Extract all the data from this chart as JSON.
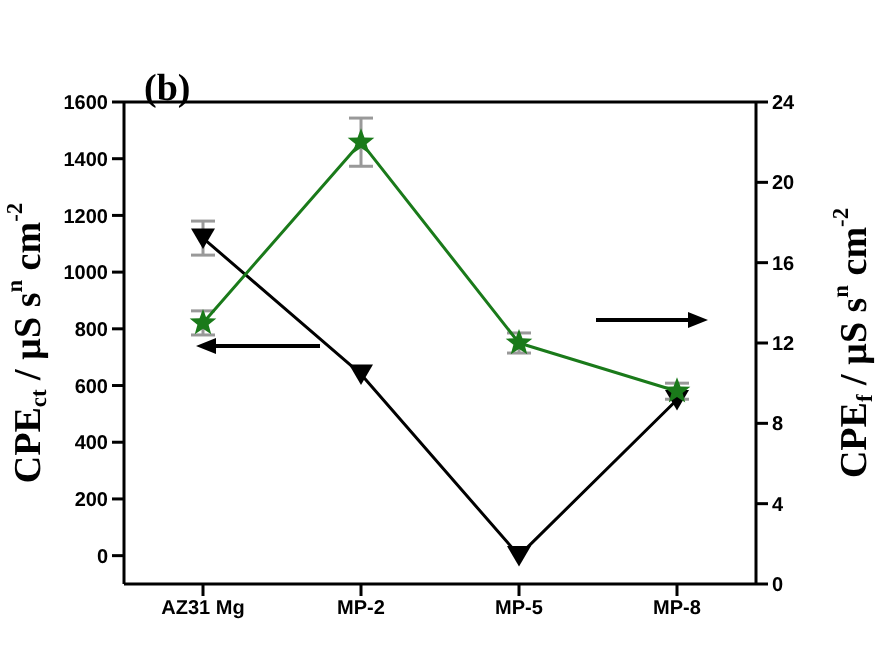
{
  "chart_data": {
    "type": "line",
    "categories": [
      "AZ31 Mg",
      "MP-2",
      "MP-5",
      "MP-8"
    ],
    "ylabel": "CPE$_{ct}$ / µS s$^{n}$ cm$^{-2}$",
    "y2label": "CPE$_{f}$ / µS s$^{n}$ cm$^{-2}$",
    "ylim": [
      -100,
      1600
    ],
    "yticks": [
      0,
      200,
      400,
      600,
      800,
      1000,
      1200,
      1400,
      1600
    ],
    "y2lim": [
      0,
      24
    ],
    "y2ticks": [
      0,
      4,
      8,
      12,
      16,
      20,
      24
    ],
    "annotations": [
      "(b)"
    ],
    "grid": false,
    "series": [
      {
        "color": "#000000",
        "marker": "triangle",
        "values": [
          1120,
          640,
          0,
          550
        ],
        "errors": [
          60,
          null,
          null,
          null
        ]
      },
      {
        "color": "#1a7a1a",
        "marker": "star",
        "axis": "y2",
        "values": [
          13,
          22,
          12,
          9.6
        ],
        "errors": [
          0.6,
          1.2,
          0.5,
          0.4
        ]
      }
    ]
  }
}
